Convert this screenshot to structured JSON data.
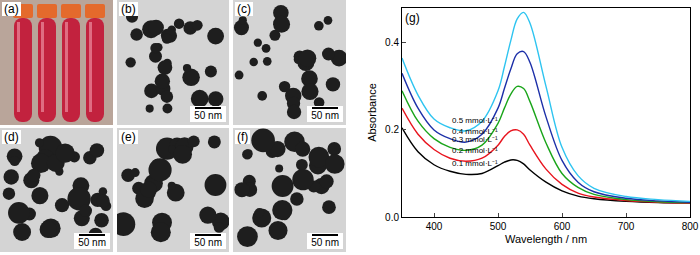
{
  "panels": [
    {
      "label": "(a)"
    },
    {
      "label": "(b)",
      "scale_bar": "50 nm"
    },
    {
      "label": "(c)",
      "scale_bar": "50 nm"
    },
    {
      "label": "(d)",
      "scale_bar": "50 nm"
    },
    {
      "label": "(e)",
      "scale_bar": "50 nm"
    },
    {
      "label": "(f)",
      "scale_bar": "50 nm"
    }
  ],
  "chart_data": {
    "type": "line",
    "panel_label": "(g)",
    "x_label": "Wavelength / nm",
    "y_label": "Absorbance",
    "x": [
      350,
      375,
      400,
      425,
      450,
      475,
      500,
      510,
      520,
      530,
      540,
      550,
      575,
      600,
      625,
      650,
      700,
      750,
      800
    ],
    "series": [
      {
        "name": "0.1 mmol·L⁻¹",
        "color": "#000000",
        "values": [
          0.205,
          0.15,
          0.12,
          0.105,
          0.098,
          0.1,
          0.118,
          0.126,
          0.131,
          0.13,
          0.122,
          0.108,
          0.08,
          0.06,
          0.048,
          0.042,
          0.036,
          0.033,
          0.032
        ]
      },
      {
        "name": "0.2 mmol·L⁻¹",
        "color": "#e8141e",
        "values": [
          0.25,
          0.19,
          0.155,
          0.135,
          0.128,
          0.135,
          0.165,
          0.185,
          0.198,
          0.2,
          0.19,
          0.165,
          0.11,
          0.075,
          0.055,
          0.046,
          0.038,
          0.034,
          0.032
        ]
      },
      {
        "name": "0.3 mmol·L⁻¹",
        "color": "#1aa51a",
        "values": [
          0.29,
          0.22,
          0.18,
          0.16,
          0.153,
          0.165,
          0.215,
          0.25,
          0.282,
          0.3,
          0.295,
          0.265,
          0.17,
          0.1,
          0.068,
          0.052,
          0.04,
          0.035,
          0.033
        ]
      },
      {
        "name": "0.4 mmol·L⁻¹",
        "color": "#1c2fa8",
        "values": [
          0.33,
          0.25,
          0.2,
          0.18,
          0.172,
          0.19,
          0.25,
          0.295,
          0.34,
          0.375,
          0.38,
          0.355,
          0.23,
          0.13,
          0.08,
          0.058,
          0.043,
          0.037,
          0.034
        ]
      },
      {
        "name": "0.5 mmol·L⁻¹",
        "color": "#2ec4f0",
        "values": [
          0.365,
          0.28,
          0.225,
          0.205,
          0.198,
          0.22,
          0.29,
          0.345,
          0.405,
          0.455,
          0.47,
          0.445,
          0.3,
          0.16,
          0.095,
          0.066,
          0.047,
          0.04,
          0.036
        ]
      }
    ],
    "xlim": [
      350,
      800
    ],
    "ylim": [
      0,
      0.48
    ],
    "xticks": [
      400,
      500,
      600,
      700,
      800
    ],
    "yticks": [
      {
        "value": 0,
        "label": "0.0"
      },
      0.2,
      0.4
    ],
    "grid": false
  }
}
